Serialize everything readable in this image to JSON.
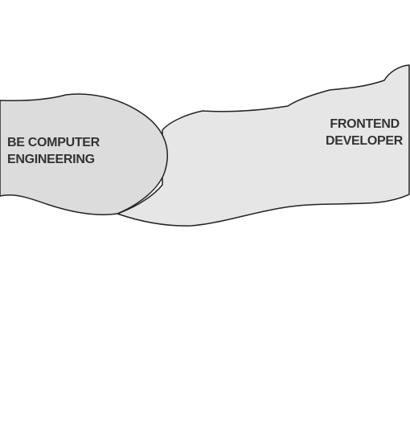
{
  "left_shape": {
    "line1": "BE COMPUTER",
    "line2": "ENGINEERING",
    "fill": "#dcdcdc"
  },
  "right_shape": {
    "line1": "FRONTEND",
    "line2": "DEVELOPER",
    "fill": "#e6e6e6"
  },
  "colors": {
    "stroke": "#222222",
    "text": "#333333",
    "background": "#ffffff"
  }
}
